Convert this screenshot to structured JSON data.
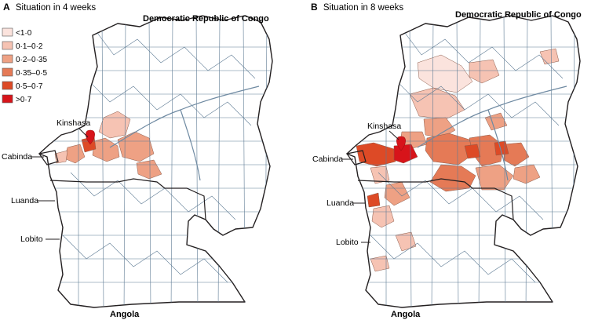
{
  "legend": {
    "items": [
      {
        "label": "<1·0",
        "color": "#fbe3dd"
      },
      {
        "label": "0·1–0·2",
        "color": "#f6c3b3"
      },
      {
        "label": "0·2–0·35",
        "color": "#eea184"
      },
      {
        "label": "0·35–0·5",
        "color": "#e57a56"
      },
      {
        "label": "0·5–0·7",
        "color": "#dd4a26"
      },
      {
        "label": ">0·7",
        "color": "#d7141a"
      }
    ]
  },
  "panels": [
    {
      "letter": "A",
      "title": "Situation in 4 weeks",
      "country_top": "Democratic Republic of Congo",
      "country_bottom": "Angola",
      "cities": [
        "Kinshasa",
        "Cabinda",
        "Luanda",
        "Lobito"
      ]
    },
    {
      "letter": "B",
      "title": "Situation in 8 weeks",
      "country_top": "Democratic Republic of Congo",
      "country_bottom": "Angola",
      "cities": [
        "Kinshasa",
        "Cabinda",
        "Luanda",
        "Lobito"
      ]
    }
  ],
  "icons": {
    "outbreak_marker": "location-pin-icon"
  }
}
